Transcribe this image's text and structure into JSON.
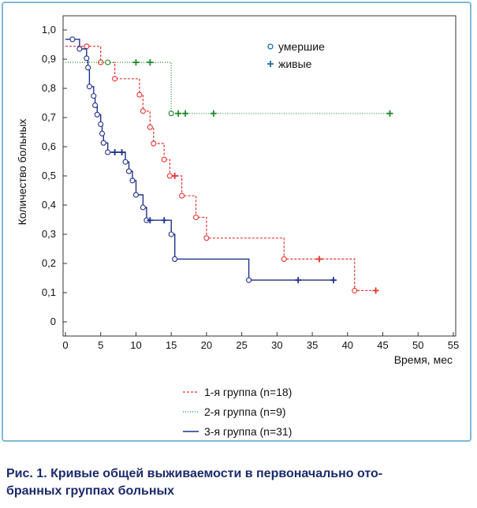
{
  "chart_data": {
    "type": "line",
    "subtype": "kaplan-meier-step",
    "xlabel": "Время, мес",
    "ylabel": "Количество больных",
    "xlim": [
      0,
      55
    ],
    "ylim": [
      0,
      1.0
    ],
    "xticks": [
      "0",
      "5",
      "10",
      "15",
      "20",
      "25",
      "30",
      "35",
      "40",
      "45",
      "50",
      "55"
    ],
    "yticks": [
      "0",
      "0,1",
      "0,2",
      "0,3",
      "0,4",
      "0,5",
      "0,6",
      "0,7",
      "0,8",
      "0,9",
      "1,0"
    ],
    "grid": false,
    "marker_legend": {
      "dead_label": "умершие",
      "alive_label": "живые"
    },
    "series_legend_placement": "bottom-center",
    "series": [
      {
        "name": "1-я группа (n=18)",
        "color": "#e8322e",
        "line_style": "dashed",
        "steps": [
          [
            0,
            0.944
          ],
          [
            5,
            0.889
          ],
          [
            7,
            0.833
          ],
          [
            10.5,
            0.778
          ],
          [
            11,
            0.722
          ],
          [
            12,
            0.667
          ],
          [
            12.5,
            0.611
          ],
          [
            14,
            0.556
          ],
          [
            14.8,
            0.5
          ],
          [
            16.5,
            0.432
          ],
          [
            18.5,
            0.358
          ],
          [
            20,
            0.287
          ],
          [
            31,
            0.215
          ],
          [
            41,
            0.107
          ],
          [
            44,
            0.107
          ]
        ],
        "deaths": [
          [
            3,
            0.944
          ],
          [
            5,
            0.889
          ],
          [
            7,
            0.833
          ],
          [
            10.5,
            0.778
          ],
          [
            11,
            0.722
          ],
          [
            12,
            0.667
          ],
          [
            12.5,
            0.611
          ],
          [
            14,
            0.556
          ],
          [
            14.8,
            0.5
          ],
          [
            16.5,
            0.432
          ],
          [
            18.5,
            0.358
          ],
          [
            20,
            0.287
          ],
          [
            31,
            0.215
          ],
          [
            41,
            0.107
          ]
        ],
        "censored": [
          [
            15.5,
            0.5
          ],
          [
            36,
            0.215
          ],
          [
            44,
            0.107
          ]
        ]
      },
      {
        "name": "2-я группа (n=9)",
        "color": "#1f8a2a",
        "line_style": "dotted",
        "steps": [
          [
            0,
            0.889
          ],
          [
            15,
            0.714
          ],
          [
            46,
            0.714
          ]
        ],
        "deaths": [
          [
            6,
            0.889
          ],
          [
            15,
            0.714
          ]
        ],
        "censored": [
          [
            10,
            0.889
          ],
          [
            12,
            0.889
          ],
          [
            16,
            0.714
          ],
          [
            17,
            0.714
          ],
          [
            21,
            0.714
          ],
          [
            46,
            0.714
          ]
        ]
      },
      {
        "name": "3-я группа (n=31)",
        "color": "#1f2f8a",
        "line_style": "solid",
        "steps": [
          [
            0,
            0.968
          ],
          [
            2,
            0.935
          ],
          [
            3,
            0.903
          ],
          [
            3.2,
            0.871
          ],
          [
            3.4,
            0.806
          ],
          [
            4,
            0.774
          ],
          [
            4.2,
            0.742
          ],
          [
            4.5,
            0.71
          ],
          [
            5,
            0.677
          ],
          [
            5.2,
            0.645
          ],
          [
            5.4,
            0.613
          ],
          [
            6,
            0.581
          ],
          [
            8.5,
            0.548
          ],
          [
            9,
            0.516
          ],
          [
            9.5,
            0.484
          ],
          [
            10,
            0.435
          ],
          [
            11,
            0.392
          ],
          [
            11.5,
            0.348
          ],
          [
            15,
            0.3
          ],
          [
            15.5,
            0.215
          ],
          [
            26,
            0.143
          ],
          [
            38,
            0.143
          ]
        ],
        "deaths": [
          [
            1,
            0.968
          ],
          [
            2,
            0.935
          ],
          [
            3,
            0.903
          ],
          [
            3.2,
            0.871
          ],
          [
            3.4,
            0.806
          ],
          [
            4,
            0.774
          ],
          [
            4.2,
            0.742
          ],
          [
            4.5,
            0.71
          ],
          [
            5,
            0.677
          ],
          [
            5.2,
            0.645
          ],
          [
            5.4,
            0.613
          ],
          [
            6,
            0.581
          ],
          [
            8.5,
            0.548
          ],
          [
            9,
            0.516
          ],
          [
            9.5,
            0.484
          ],
          [
            10,
            0.435
          ],
          [
            11,
            0.392
          ],
          [
            11.5,
            0.348
          ],
          [
            15,
            0.3
          ],
          [
            15.5,
            0.215
          ],
          [
            26,
            0.143
          ]
        ],
        "censored": [
          [
            7,
            0.581
          ],
          [
            8,
            0.581
          ],
          [
            12,
            0.348
          ],
          [
            14,
            0.348
          ],
          [
            33,
            0.143
          ],
          [
            38,
            0.143
          ]
        ]
      }
    ]
  },
  "caption": {
    "line1": "Рис. 1. Кривые общей выживаемости в первоначально ото-",
    "line2": "бранных группах больных"
  },
  "colors": {
    "frame": "#7fb7d8",
    "marker_legend_dead": "#1a6faf",
    "marker_legend_alive": "#1a6faf",
    "caption": "#1b2a6b"
  }
}
